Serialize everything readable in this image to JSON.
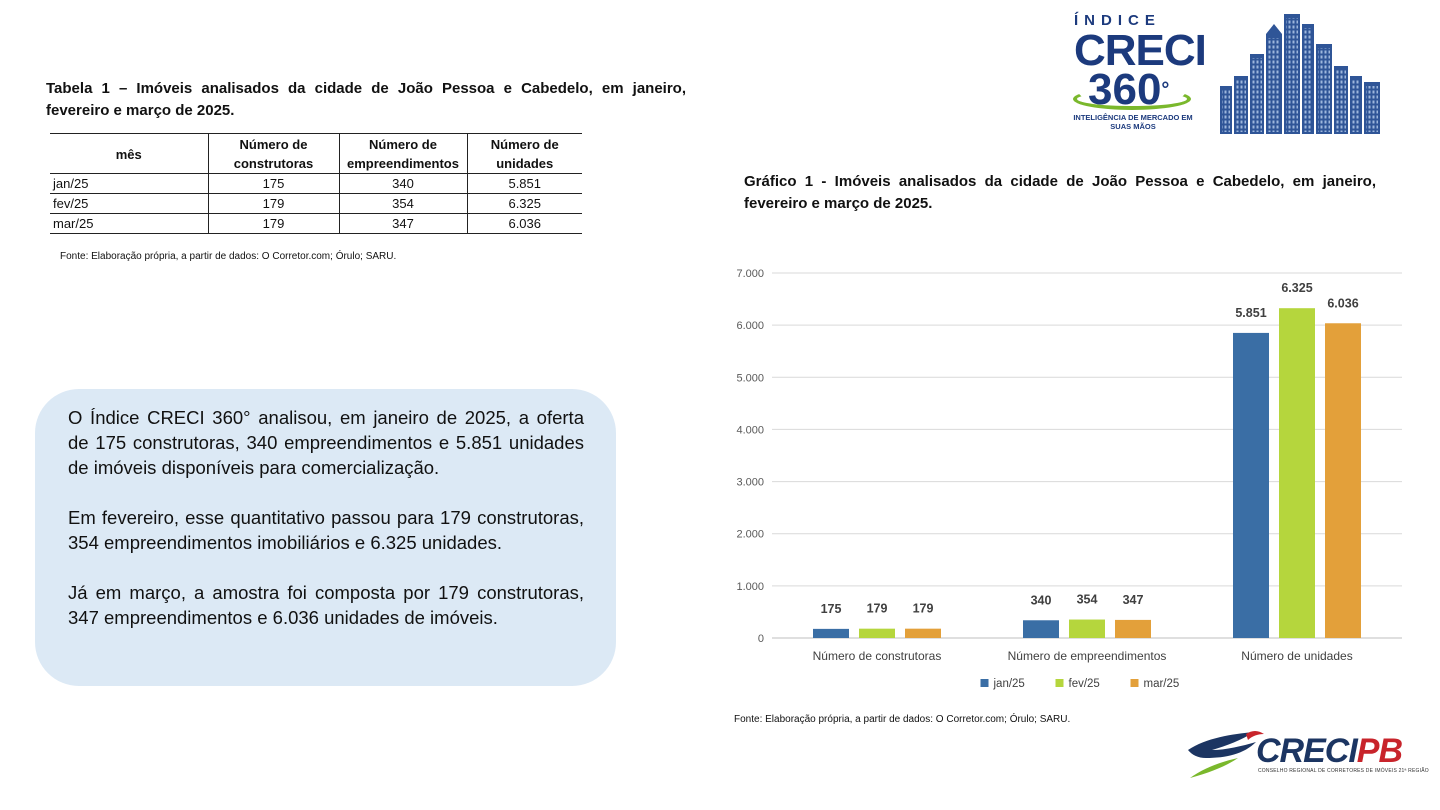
{
  "table1": {
    "title": "Tabela 1 – Imóveis analisados da cidade de João Pessoa e Cabedelo, em janeiro, fevereiro e março de 2025.",
    "headers": [
      "mês",
      "Número de construtoras",
      "Número de empreendimentos",
      "Número de unidades"
    ],
    "rows": [
      [
        "jan/25",
        "175",
        "340",
        "5.851"
      ],
      [
        "fev/25",
        "179",
        "354",
        "6.325"
      ],
      [
        "mar/25",
        "179",
        "347",
        "6.036"
      ]
    ],
    "source": "Fonte: Elaboração própria, a partir de dados: O Corretor.com; Órulo; SARU."
  },
  "summary": {
    "p1": "O Índice CRECI 360° analisou, em janeiro de 2025, a oferta de 175 construtoras, 340 empreendimentos e 5.851 unidades de imóveis disponíveis para comercialização.",
    "p2": "Em fevereiro, esse quantitativo passou para 179 construtoras, 354 empreendimentos imobiliários e 6.325 unidades.",
    "p3": "Já em março, a amostra foi composta por 179 construtoras, 347 empreendimentos e 6.036 unidades de imóveis."
  },
  "logo": {
    "indice": "ÍNDICE",
    "creci": "CRECI",
    "number": "360",
    "degree": "°",
    "tagline": "INTELIGÊNCIA DE MERCADO EM SUAS MÃOS",
    "brand_blue": "#1c3a7d",
    "brand_green": "#7ab82c"
  },
  "chart_title": "Gráfico 1 - Imóveis analisados da cidade de João Pessoa e Cabedelo, em janeiro, fevereiro e março de 2025.",
  "chart_source": "Fonte: Elaboração própria, a partir de dados: O Corretor.com; Órulo; SARU.",
  "chart_data": {
    "type": "bar",
    "categories": [
      "Número de construtoras",
      "Número de empreendimentos",
      "Número de unidades"
    ],
    "series": [
      {
        "name": "jan/25",
        "color": "#3a6ea5",
        "values": [
          175,
          340,
          5851
        ],
        "labels": [
          "175",
          "340",
          "5.851"
        ]
      },
      {
        "name": "fev/25",
        "color": "#b5d63d",
        "values": [
          179,
          354,
          6325
        ],
        "labels": [
          "179",
          "354",
          "6.325"
        ]
      },
      {
        "name": "mar/25",
        "color": "#e3a03a",
        "values": [
          179,
          347,
          6036
        ],
        "labels": [
          "179",
          "347",
          "6.036"
        ]
      }
    ],
    "ylim": [
      0,
      7000
    ],
    "yticks": [
      0,
      1000,
      2000,
      3000,
      4000,
      5000,
      6000,
      7000
    ],
    "ytick_labels": [
      "0",
      "1.000",
      "2.000",
      "3.000",
      "4.000",
      "5.000",
      "6.000",
      "7.000"
    ],
    "grid": true,
    "legend": "bottom",
    "title": "",
    "xlabel": "",
    "ylabel": ""
  },
  "footer_logo": {
    "creci": "CRECI",
    "pb": "PB",
    "subtitle": "CONSELHO REGIONAL DE CORRETORES DE IMÓVEIS 21ª REGIÃO",
    "navy": "#1c3562",
    "red": "#c8242b"
  }
}
